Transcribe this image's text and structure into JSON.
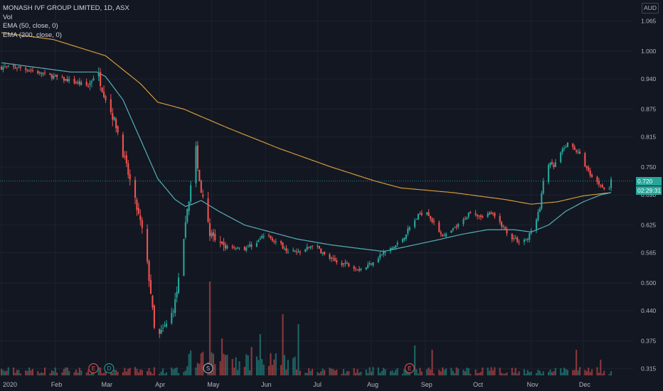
{
  "legend": {
    "symbol": "MONASH IVF GROUP LIMITED, 1D, ASX",
    "vol": "Vol",
    "ema50": "EMA (50, close, 0)",
    "ema200": "EMA (200, close, 0)"
  },
  "currency": "AUD",
  "last_price": "0.720",
  "countdown": "02:29:31",
  "colors": {
    "background": "#131722",
    "up": "#26a69a",
    "down": "#ef5350",
    "ema50": "#56b0b8",
    "ema200": "#d39a3a"
  },
  "chart_data": {
    "type": "candlestick",
    "title": "MONASH IVF GROUP LIMITED, 1D, ASX",
    "x_labels": [
      "2020",
      "Feb",
      "Mar",
      "Apr",
      "May",
      "Jun",
      "Jul",
      "Aug",
      "Sep",
      "Oct",
      "Nov",
      "Dec"
    ],
    "x_label_days": [
      0,
      31,
      60,
      91,
      121,
      152,
      182,
      213,
      244,
      274,
      305,
      335
    ],
    "y_ticks": [
      "1.065",
      "1.000",
      "0.940",
      "0.875",
      "0.815",
      "0.750",
      "0.690",
      "0.625",
      "0.565",
      "0.500",
      "0.440",
      "0.375",
      "0.315"
    ],
    "y_range": [
      0.31,
      1.095
    ],
    "event_markers": [
      {
        "label": "E",
        "date": "Feb 23",
        "type": "earnings"
      },
      {
        "label": "D",
        "date": "Mar 3",
        "type": "dividend"
      },
      {
        "label": "S",
        "date": "Apr 29",
        "type": "split"
      },
      {
        "label": "E",
        "date": "Aug 23",
        "type": "earnings"
      }
    ],
    "price_path": [
      [
        0,
        0.965
      ],
      [
        10,
        0.965
      ],
      [
        20,
        0.955
      ],
      [
        30,
        0.945
      ],
      [
        40,
        0.935
      ],
      [
        50,
        0.925
      ],
      [
        55,
        0.96
      ],
      [
        58,
        0.92
      ],
      [
        62,
        0.88
      ],
      [
        66,
        0.84
      ],
      [
        70,
        0.78
      ],
      [
        74,
        0.72
      ],
      [
        78,
        0.66
      ],
      [
        82,
        0.6
      ],
      [
        86,
        0.48
      ],
      [
        88,
        0.4
      ],
      [
        90,
        0.38
      ],
      [
        93,
        0.4
      ],
      [
        97,
        0.42
      ],
      [
        100,
        0.46
      ],
      [
        104,
        0.55
      ],
      [
        107,
        0.66
      ],
      [
        110,
        0.73
      ],
      [
        112,
        0.79
      ],
      [
        114,
        0.72
      ],
      [
        117,
        0.66
      ],
      [
        120,
        0.61
      ],
      [
        124,
        0.58
      ],
      [
        130,
        0.58
      ],
      [
        140,
        0.575
      ],
      [
        146,
        0.585
      ],
      [
        152,
        0.605
      ],
      [
        158,
        0.59
      ],
      [
        165,
        0.57
      ],
      [
        172,
        0.565
      ],
      [
        180,
        0.585
      ],
      [
        186,
        0.56
      ],
      [
        193,
        0.545
      ],
      [
        200,
        0.54
      ],
      [
        206,
        0.53
      ],
      [
        210,
        0.535
      ],
      [
        215,
        0.55
      ],
      [
        220,
        0.565
      ],
      [
        225,
        0.575
      ],
      [
        230,
        0.59
      ],
      [
        236,
        0.625
      ],
      [
        241,
        0.65
      ],
      [
        245,
        0.655
      ],
      [
        250,
        0.62
      ],
      [
        255,
        0.6
      ],
      [
        260,
        0.615
      ],
      [
        265,
        0.63
      ],
      [
        270,
        0.655
      ],
      [
        276,
        0.645
      ],
      [
        282,
        0.65
      ],
      [
        288,
        0.625
      ],
      [
        293,
        0.6
      ],
      [
        298,
        0.59
      ],
      [
        303,
        0.595
      ],
      [
        307,
        0.63
      ],
      [
        310,
        0.66
      ],
      [
        312,
        0.72
      ],
      [
        314,
        0.76
      ],
      [
        318,
        0.75
      ],
      [
        322,
        0.78
      ],
      [
        326,
        0.8
      ],
      [
        330,
        0.79
      ],
      [
        334,
        0.77
      ],
      [
        338,
        0.74
      ],
      [
        342,
        0.72
      ],
      [
        346,
        0.71
      ],
      [
        349,
        0.69
      ],
      [
        351,
        0.72
      ]
    ],
    "ema200_path": [
      [
        0,
        1.04
      ],
      [
        30,
        1.025
      ],
      [
        60,
        0.99
      ],
      [
        80,
        0.93
      ],
      [
        90,
        0.89
      ],
      [
        105,
        0.875
      ],
      [
        130,
        0.835
      ],
      [
        160,
        0.79
      ],
      [
        190,
        0.75
      ],
      [
        215,
        0.72
      ],
      [
        230,
        0.705
      ],
      [
        260,
        0.695
      ],
      [
        290,
        0.68
      ],
      [
        305,
        0.67
      ],
      [
        320,
        0.675
      ],
      [
        335,
        0.688
      ],
      [
        351,
        0.695
      ]
    ],
    "ema50_path": [
      [
        0,
        0.975
      ],
      [
        20,
        0.965
      ],
      [
        40,
        0.955
      ],
      [
        55,
        0.955
      ],
      [
        60,
        0.945
      ],
      [
        70,
        0.895
      ],
      [
        80,
        0.81
      ],
      [
        90,
        0.725
      ],
      [
        100,
        0.68
      ],
      [
        106,
        0.665
      ],
      [
        110,
        0.67
      ],
      [
        115,
        0.678
      ],
      [
        125,
        0.655
      ],
      [
        140,
        0.625
      ],
      [
        155,
        0.61
      ],
      [
        170,
        0.595
      ],
      [
        190,
        0.582
      ],
      [
        205,
        0.575
      ],
      [
        220,
        0.568
      ],
      [
        235,
        0.58
      ],
      [
        250,
        0.592
      ],
      [
        265,
        0.605
      ],
      [
        280,
        0.615
      ],
      [
        295,
        0.615
      ],
      [
        305,
        0.61
      ],
      [
        315,
        0.625
      ],
      [
        325,
        0.655
      ],
      [
        335,
        0.675
      ],
      [
        345,
        0.69
      ],
      [
        351,
        0.695
      ]
    ]
  }
}
